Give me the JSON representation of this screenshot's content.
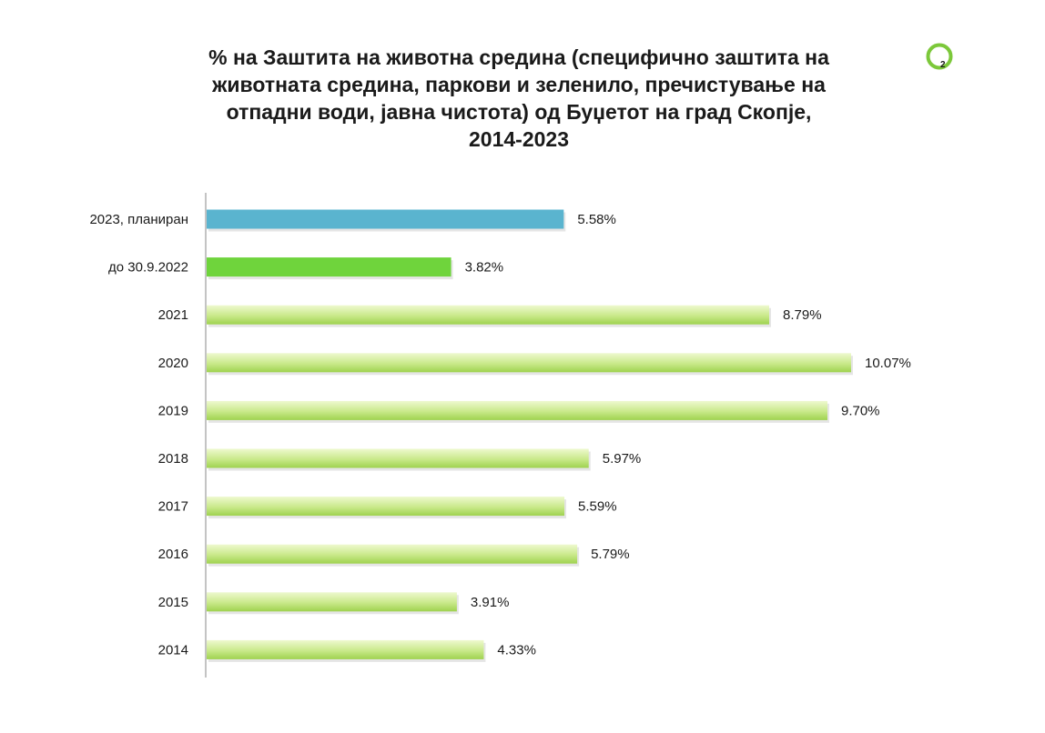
{
  "page_number": "2",
  "colors": {
    "planned": "#5ab4cf",
    "partial": "#6fd43c",
    "actual_light": "#e4f5b8",
    "actual_dark": "#9fd24f",
    "badge_ring": "#7cc83a",
    "axis": "#b0b0b0"
  },
  "chart_data": {
    "type": "bar",
    "orientation": "horizontal",
    "title": "% на Заштита на животна средина (специфично заштита на животната средина, паркови и зеленило, пречистување на отпадни води, јавна чистота) од Буџетот на град Скопје, 2014-2023",
    "title_lines": [
      "% на Заштита на животна средина (специфично заштита на",
      "животната средина, паркови и зеленило, пречистување на",
      "отпадни води, јавна чистота) од Буџетот на град Скопје,",
      "2014-2023"
    ],
    "categories": [
      "2023, планиран",
      "до 30.9.2022",
      "2021",
      "2020",
      "2019",
      "2018",
      "2017",
      "2016",
      "2015",
      "2014"
    ],
    "values": [
      5.58,
      3.82,
      8.79,
      10.07,
      9.7,
      5.97,
      5.59,
      5.79,
      3.91,
      4.33
    ],
    "value_labels": [
      "5.58%",
      "3.82%",
      "8.79%",
      "10.07%",
      "9.70%",
      "5.97%",
      "5.59%",
      "5.79%",
      "3.91%",
      "4.33%"
    ],
    "bar_styles": [
      "planned",
      "partial",
      "actual",
      "actual",
      "actual",
      "actual",
      "actual",
      "actual",
      "actual",
      "actual"
    ],
    "xlim": [
      0,
      10.07
    ],
    "grid": false,
    "legend": false
  }
}
